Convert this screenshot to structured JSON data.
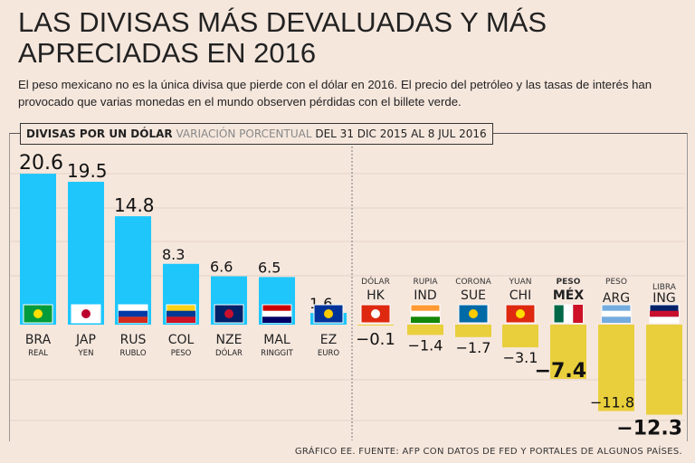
{
  "title": "LAS DIVISAS MÁS DEVALUADAS Y MÁS APRECIADAS EN 2016",
  "subtitle": "El peso mexicano no es la única divisa que pierde con el dólar en 2016. El precio del petróleo y las tasas de interés han provocado que varias monedas en el mundo observen pérdidas con el billete verde.",
  "header": {
    "bold": "DIVISAS POR UN DÓLAR",
    "gray": "VARIACIÓN PORCENTUAL",
    "rest": "DEL 31 DIC 2015 AL 8 JUL 2016"
  },
  "source": "GRÁFICO EE. FUENTE: AFP CON DATOS DE FED Y PORTALES DE ALGUNOS PAÍSES.",
  "colors": {
    "positive": "#1ec6fb",
    "negative": "#e9cf3c",
    "background": "#f6e7dd"
  },
  "chart_data": {
    "type": "bar",
    "title": "DIVISAS POR UN DÓLAR",
    "ylabel": "Variación porcentual",
    "categories": [
      "BRA",
      "JAP",
      "RUS",
      "COL",
      "NZE",
      "MAL",
      "EZ",
      "HK",
      "IND",
      "SUE",
      "CHI",
      "MÉX",
      "ARG",
      "ING"
    ],
    "currency_names": [
      "REAL",
      "YEN",
      "RUBLO",
      "PESO",
      "DÓLAR",
      "RINGGIT",
      "EURO",
      "DÓLAR",
      "RUPIA",
      "CORONA",
      "YUAN",
      "PESO",
      "PESO",
      "LIBRA"
    ],
    "values": [
      20.6,
      19.5,
      14.8,
      8.3,
      6.6,
      6.5,
      1.6,
      -0.1,
      -1.4,
      -1.7,
      -3.1,
      -7.4,
      -11.8,
      -12.3
    ],
    "value_labels": [
      "20.6",
      "19.5",
      "14.8",
      "8.3",
      "6.6",
      "6.5",
      "1.6",
      "−0.1",
      "−1.4",
      "−1.7",
      "−3.1",
      "−7.4",
      "−11.8",
      "−12.3"
    ],
    "ylim": [
      -13,
      21
    ],
    "grid": true,
    "highlight": "MÉX"
  }
}
